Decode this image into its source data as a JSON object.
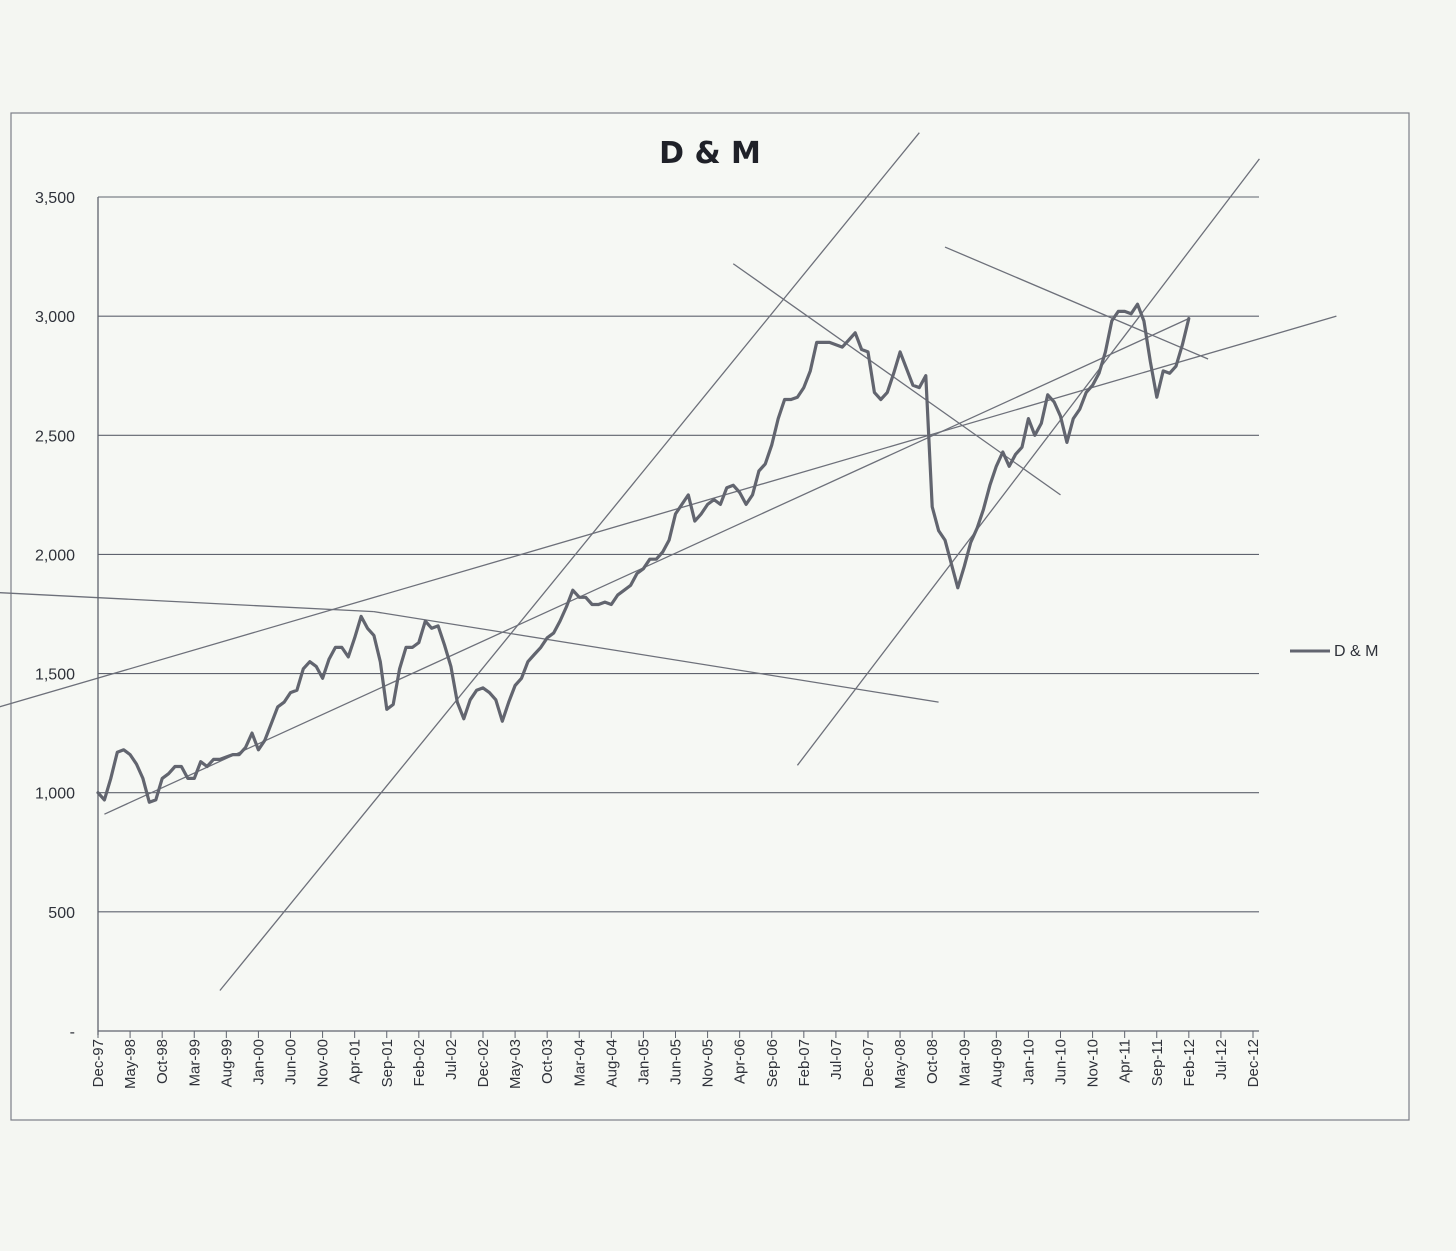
{
  "chart_data": {
    "type": "line",
    "title": "D & M",
    "ylim": [
      0,
      3500
    ],
    "y_ticks": [
      {
        "value": 0,
        "label": "-"
      },
      {
        "value": 500,
        "label": "500"
      },
      {
        "value": 1000,
        "label": "1,000"
      },
      {
        "value": 1500,
        "label": "1,500"
      },
      {
        "value": 2000,
        "label": "2,000"
      },
      {
        "value": 2500,
        "label": "2,500"
      },
      {
        "value": 3000,
        "label": "3,000"
      },
      {
        "value": 3500,
        "label": "3,500"
      }
    ],
    "x_tick_labels": [
      "Dec-97",
      "May-98",
      "Oct-98",
      "Mar-99",
      "Aug-99",
      "Jan-00",
      "Jun-00",
      "Nov-00",
      "Apr-01",
      "Sep-01",
      "Feb-02",
      "Jul-02",
      "Dec-02",
      "May-03",
      "Oct-03",
      "Mar-04",
      "Aug-04",
      "Jan-05",
      "Jun-05",
      "Nov-05",
      "Apr-06",
      "Sep-06",
      "Feb-07",
      "Jul-07",
      "Dec-07",
      "May-08",
      "Oct-08",
      "Mar-09",
      "Aug-09",
      "Jan-10",
      "Jun-10",
      "Nov-10",
      "Apr-11",
      "Sep-11",
      "Feb-12",
      "Jul-12",
      "Dec-12"
    ],
    "grid": true,
    "legend": {
      "position": "right"
    },
    "series": [
      {
        "name": "D & M",
        "color": "#62656f",
        "x": [
          "Dec-97",
          "Jan-98",
          "Feb-98",
          "Mar-98",
          "Apr-98",
          "May-98",
          "Jun-98",
          "Jul-98",
          "Aug-98",
          "Sep-98",
          "Oct-98",
          "Nov-98",
          "Dec-98",
          "Jan-99",
          "Feb-99",
          "Mar-99",
          "Apr-99",
          "May-99",
          "Jun-99",
          "Jul-99",
          "Aug-99",
          "Sep-99",
          "Oct-99",
          "Nov-99",
          "Dec-99",
          "Jan-00",
          "Feb-00",
          "Mar-00",
          "Apr-00",
          "May-00",
          "Jun-00",
          "Jul-00",
          "Aug-00",
          "Sep-00",
          "Oct-00",
          "Nov-00",
          "Dec-00",
          "Jan-01",
          "Feb-01",
          "Mar-01",
          "Apr-01",
          "May-01",
          "Jun-01",
          "Jul-01",
          "Aug-01",
          "Sep-01",
          "Oct-01",
          "Nov-01",
          "Dec-01",
          "Jan-02",
          "Feb-02",
          "Mar-02",
          "Apr-02",
          "May-02",
          "Jun-02",
          "Jul-02",
          "Aug-02",
          "Sep-02",
          "Oct-02",
          "Nov-02",
          "Dec-02",
          "Jan-03",
          "Feb-03",
          "Mar-03",
          "Apr-03",
          "May-03",
          "Jun-03",
          "Jul-03",
          "Aug-03",
          "Sep-03",
          "Oct-03",
          "Nov-03",
          "Dec-03",
          "Jan-04",
          "Feb-04",
          "Mar-04",
          "Apr-04",
          "May-04",
          "Jun-04",
          "Jul-04",
          "Aug-04",
          "Sep-04",
          "Oct-04",
          "Nov-04",
          "Dec-04",
          "Jan-05",
          "Feb-05",
          "Mar-05",
          "Apr-05",
          "May-05",
          "Jun-05",
          "Jul-05",
          "Aug-05",
          "Sep-05",
          "Oct-05",
          "Nov-05",
          "Dec-05",
          "Jan-06",
          "Feb-06",
          "Mar-06",
          "Apr-06",
          "May-06",
          "Jun-06",
          "Jul-06",
          "Aug-06",
          "Sep-06",
          "Oct-06",
          "Nov-06",
          "Dec-06",
          "Jan-07",
          "Feb-07",
          "Mar-07",
          "Apr-07",
          "May-07",
          "Jun-07",
          "Jul-07",
          "Aug-07",
          "Sep-07",
          "Oct-07",
          "Nov-07",
          "Dec-07",
          "Jan-08",
          "Feb-08",
          "Mar-08",
          "Apr-08",
          "May-08",
          "Jun-08",
          "Jul-08",
          "Aug-08",
          "Sep-08",
          "Oct-08",
          "Nov-08",
          "Dec-08",
          "Jan-09",
          "Feb-09",
          "Mar-09",
          "Apr-09",
          "May-09",
          "Jun-09",
          "Jul-09",
          "Aug-09",
          "Sep-09",
          "Oct-09",
          "Nov-09",
          "Dec-09",
          "Jan-10",
          "Feb-10",
          "Mar-10",
          "Apr-10",
          "May-10",
          "Jun-10",
          "Jul-10",
          "Aug-10",
          "Sep-10",
          "Oct-10",
          "Nov-10",
          "Dec-10",
          "Jan-11",
          "Feb-11",
          "Mar-11",
          "Apr-11",
          "May-11",
          "Jun-11",
          "Jul-11",
          "Aug-11",
          "Sep-11",
          "Oct-11",
          "Nov-11",
          "Dec-11",
          "Jan-12",
          "Feb-12"
        ],
        "values": [
          1000,
          970,
          1060,
          1170,
          1180,
          1160,
          1120,
          1060,
          960,
          970,
          1060,
          1080,
          1110,
          1110,
          1060,
          1060,
          1130,
          1110,
          1140,
          1140,
          1150,
          1160,
          1160,
          1190,
          1250,
          1180,
          1220,
          1290,
          1360,
          1380,
          1420,
          1430,
          1520,
          1550,
          1530,
          1480,
          1560,
          1610,
          1610,
          1570,
          1650,
          1740,
          1690,
          1660,
          1550,
          1350,
          1370,
          1520,
          1610,
          1610,
          1630,
          1720,
          1690,
          1700,
          1620,
          1530,
          1380,
          1310,
          1390,
          1430,
          1440,
          1420,
          1390,
          1300,
          1380,
          1450,
          1480,
          1550,
          1580,
          1610,
          1650,
          1670,
          1720,
          1780,
          1850,
          1820,
          1820,
          1790,
          1790,
          1800,
          1790,
          1830,
          1850,
          1870,
          1920,
          1940,
          1980,
          1980,
          2010,
          2060,
          2170,
          2210,
          2250,
          2140,
          2170,
          2210,
          2230,
          2210,
          2280,
          2290,
          2260,
          2210,
          2250,
          2350,
          2380,
          2460,
          2570,
          2650,
          2650,
          2660,
          2700,
          2770,
          2890,
          2890,
          2890,
          2880,
          2870,
          2900,
          2930,
          2860,
          2850,
          2680,
          2650,
          2680,
          2760,
          2850,
          2780,
          2710,
          2700,
          2750,
          2200,
          2100,
          2060,
          1960,
          1860,
          1950,
          2050,
          2110,
          2190,
          2290,
          2370,
          2430,
          2370,
          2420,
          2450,
          2570,
          2500,
          2550,
          2670,
          2640,
          2580,
          2470,
          2570,
          2610,
          2680,
          2710,
          2760,
          2850,
          2980,
          3020,
          3020,
          3010,
          3050,
          2980,
          2810,
          2660,
          2770,
          2760,
          2790,
          2880,
          2990
        ]
      }
    ],
    "trendlines": [
      {
        "from": [
          "Jan-98",
          910
        ],
        "to": [
          "Feb-12",
          2990
        ]
      },
      {
        "from": [
          "Jan-96",
          1300
        ],
        "to": [
          "Jan-14",
          3000
        ]
      },
      {
        "from": [
          "Jul-01",
          1760
        ],
        "to": [
          "Nov-08",
          1380
        ]
      },
      {
        "from": [
          "Jul-01",
          1760
        ],
        "to": [
          "Jan-96",
          1850
        ]
      },
      {
        "from": [
          "Jul-99",
          170
        ],
        "to": [
          "Aug-08",
          3770
        ]
      },
      {
        "from": [
          "Mar-06",
          3220
        ],
        "to": [
          "Jun-10",
          2250
        ]
      },
      {
        "from": [
          "Dec-08",
          3290
        ],
        "to": [
          "May-12",
          2820
        ]
      },
      {
        "from": [
          "Jan-07",
          1115
        ],
        "to": [
          "Jan-13",
          3660
        ]
      }
    ]
  },
  "legend": {
    "label": "D & M"
  },
  "colors": {
    "series": "#62656f",
    "trendline": "#6d707a"
  }
}
